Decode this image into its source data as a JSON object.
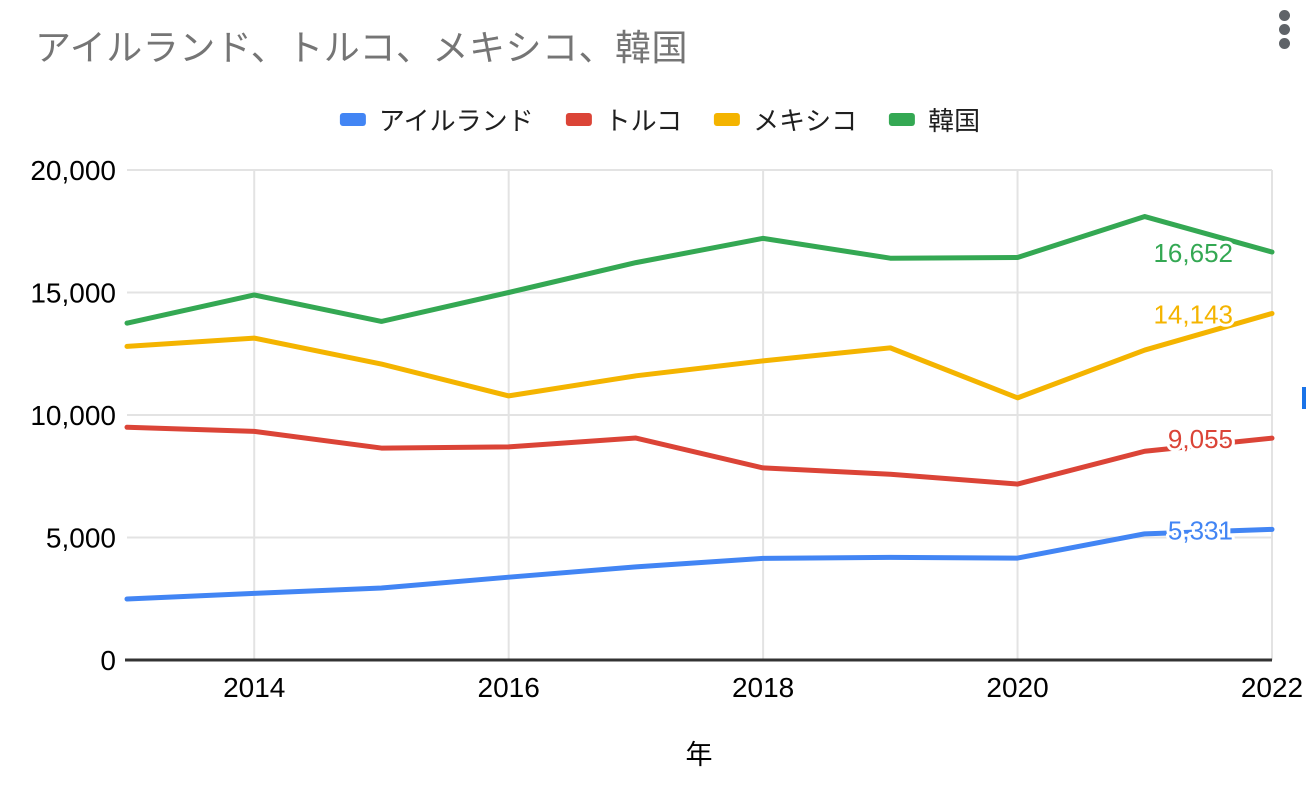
{
  "chart": {
    "title": "アイルランド、トルコ、メキシコ、韓国",
    "x_axis_title": "年"
  },
  "chart_data": {
    "type": "line",
    "title": "アイルランド、トルコ、メキシコ、韓国",
    "xlabel": "年",
    "ylabel": "",
    "legend_position": "top",
    "grid": true,
    "x": [
      2013,
      2014,
      2015,
      2016,
      2017,
      2018,
      2019,
      2020,
      2021,
      2022
    ],
    "xlim": [
      2013,
      2022
    ],
    "ylim": [
      0,
      20000
    ],
    "x_ticks": [
      {
        "value": 2014,
        "label": "2014"
      },
      {
        "value": 2016,
        "label": "2016"
      },
      {
        "value": 2018,
        "label": "2018"
      },
      {
        "value": 2020,
        "label": "2020"
      },
      {
        "value": 2022,
        "label": "2022"
      }
    ],
    "y_ticks": [
      {
        "value": 0,
        "label": "0"
      },
      {
        "value": 5000,
        "label": "5,000"
      },
      {
        "value": 10000,
        "label": "10,000"
      },
      {
        "value": 15000,
        "label": "15,000"
      },
      {
        "value": 20000,
        "label": "20,000"
      }
    ],
    "series": [
      {
        "key": "ireland",
        "name": "アイルランド",
        "color": "#4285F4",
        "values": [
          2490,
          2720,
          2940,
          3380,
          3800,
          4150,
          4190,
          4160,
          5150,
          5331
        ],
        "end_label": "5,331"
      },
      {
        "key": "turkey",
        "name": "トルコ",
        "color": "#DB4437",
        "values": [
          9500,
          9330,
          8650,
          8700,
          9060,
          7840,
          7580,
          7180,
          8520,
          9055
        ],
        "end_label": "9,055"
      },
      {
        "key": "mexico",
        "name": "メキシコ",
        "color": "#F4B400",
        "values": [
          12800,
          13140,
          12080,
          10780,
          11600,
          12210,
          12740,
          10700,
          12650,
          14143
        ],
        "end_label": "14,143"
      },
      {
        "key": "korea",
        "name": "韓国",
        "color": "#34A853",
        "values": [
          13750,
          14900,
          13820,
          15000,
          16220,
          17210,
          16400,
          16430,
          18100,
          16652
        ],
        "end_label": "16,652"
      }
    ]
  },
  "colors": {
    "title_text": "#757575",
    "axis_text": "#000000",
    "gridline": "#e3e3e3",
    "axis_line": "#333333",
    "menu_icon": "#5f6368",
    "scroll_fragment": "#1a73e8",
    "background": "#ffffff"
  }
}
